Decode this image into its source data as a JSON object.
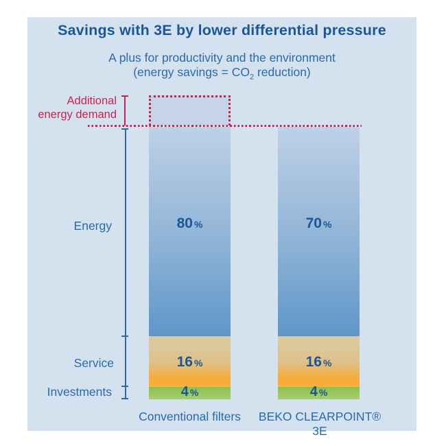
{
  "header": {
    "title": "Savings with 3E by lower differential pressure",
    "subtitle": "A plus for productivity and the environment",
    "subtitle2_pre": "(energy savings = CO",
    "subtitle2_sub": "2",
    "subtitle2_post": " reduction)"
  },
  "annotation": {
    "line1": "Additional",
    "line2": "energy demand"
  },
  "row_labels": {
    "energy": "Energy",
    "service": "Service",
    "investments": "Investments"
  },
  "unit": "%",
  "bars": {
    "conventional": {
      "label": "Conventional filters",
      "energy": "80",
      "service": "16",
      "investments": "4"
    },
    "beko": {
      "label": "BEKO CLEARPOINT® 3E",
      "energy": "70",
      "service": "16",
      "investments": "4"
    }
  },
  "colors": {
    "page_bg": "#ffffff",
    "panel_bg": "#d4e2f0",
    "title_blue": "#1b5795",
    "text_blue": "#2a6aa5",
    "accent_red": "#c8234f",
    "energy_gradient_top": "#bed1e7",
    "energy_gradient_bottom": "#5e96c9",
    "service_gradient_top": "#dbcba3",
    "service_gradient_bottom": "#f8b23e",
    "investments_gradient_top": "#8bc052",
    "investments_gradient_bottom": "#a9ce6e",
    "dotted_box_fill": "#c5d4e8"
  },
  "chart_data": {
    "type": "bar",
    "subtype": "stacked-vertical",
    "title": "Savings with 3E by lower differential pressure",
    "subtitle": "A plus for productivity and the environment (energy savings = CO2 reduction)",
    "categories": [
      "Conventional filters",
      "BEKO CLEARPOINT® 3E"
    ],
    "series": [
      {
        "name": "Energy",
        "values": [
          80,
          70
        ]
      },
      {
        "name": "Service",
        "values": [
          16,
          16
        ]
      },
      {
        "name": "Investments",
        "values": [
          4,
          4
        ]
      }
    ],
    "unit": "%",
    "value_labels": "inside segments",
    "legend": "none, category names below bars and segment names on left axis",
    "axis": "single vertical reference line with ticks at segment boundaries, no numeric scale",
    "annotations": [
      {
        "label": "Additional energy demand",
        "target": "Conventional filters",
        "style": "red dotted rectangle above the Conventional filters bar with red dotted horizontal reference line at 100% level extending across both bars"
      }
    ]
  }
}
